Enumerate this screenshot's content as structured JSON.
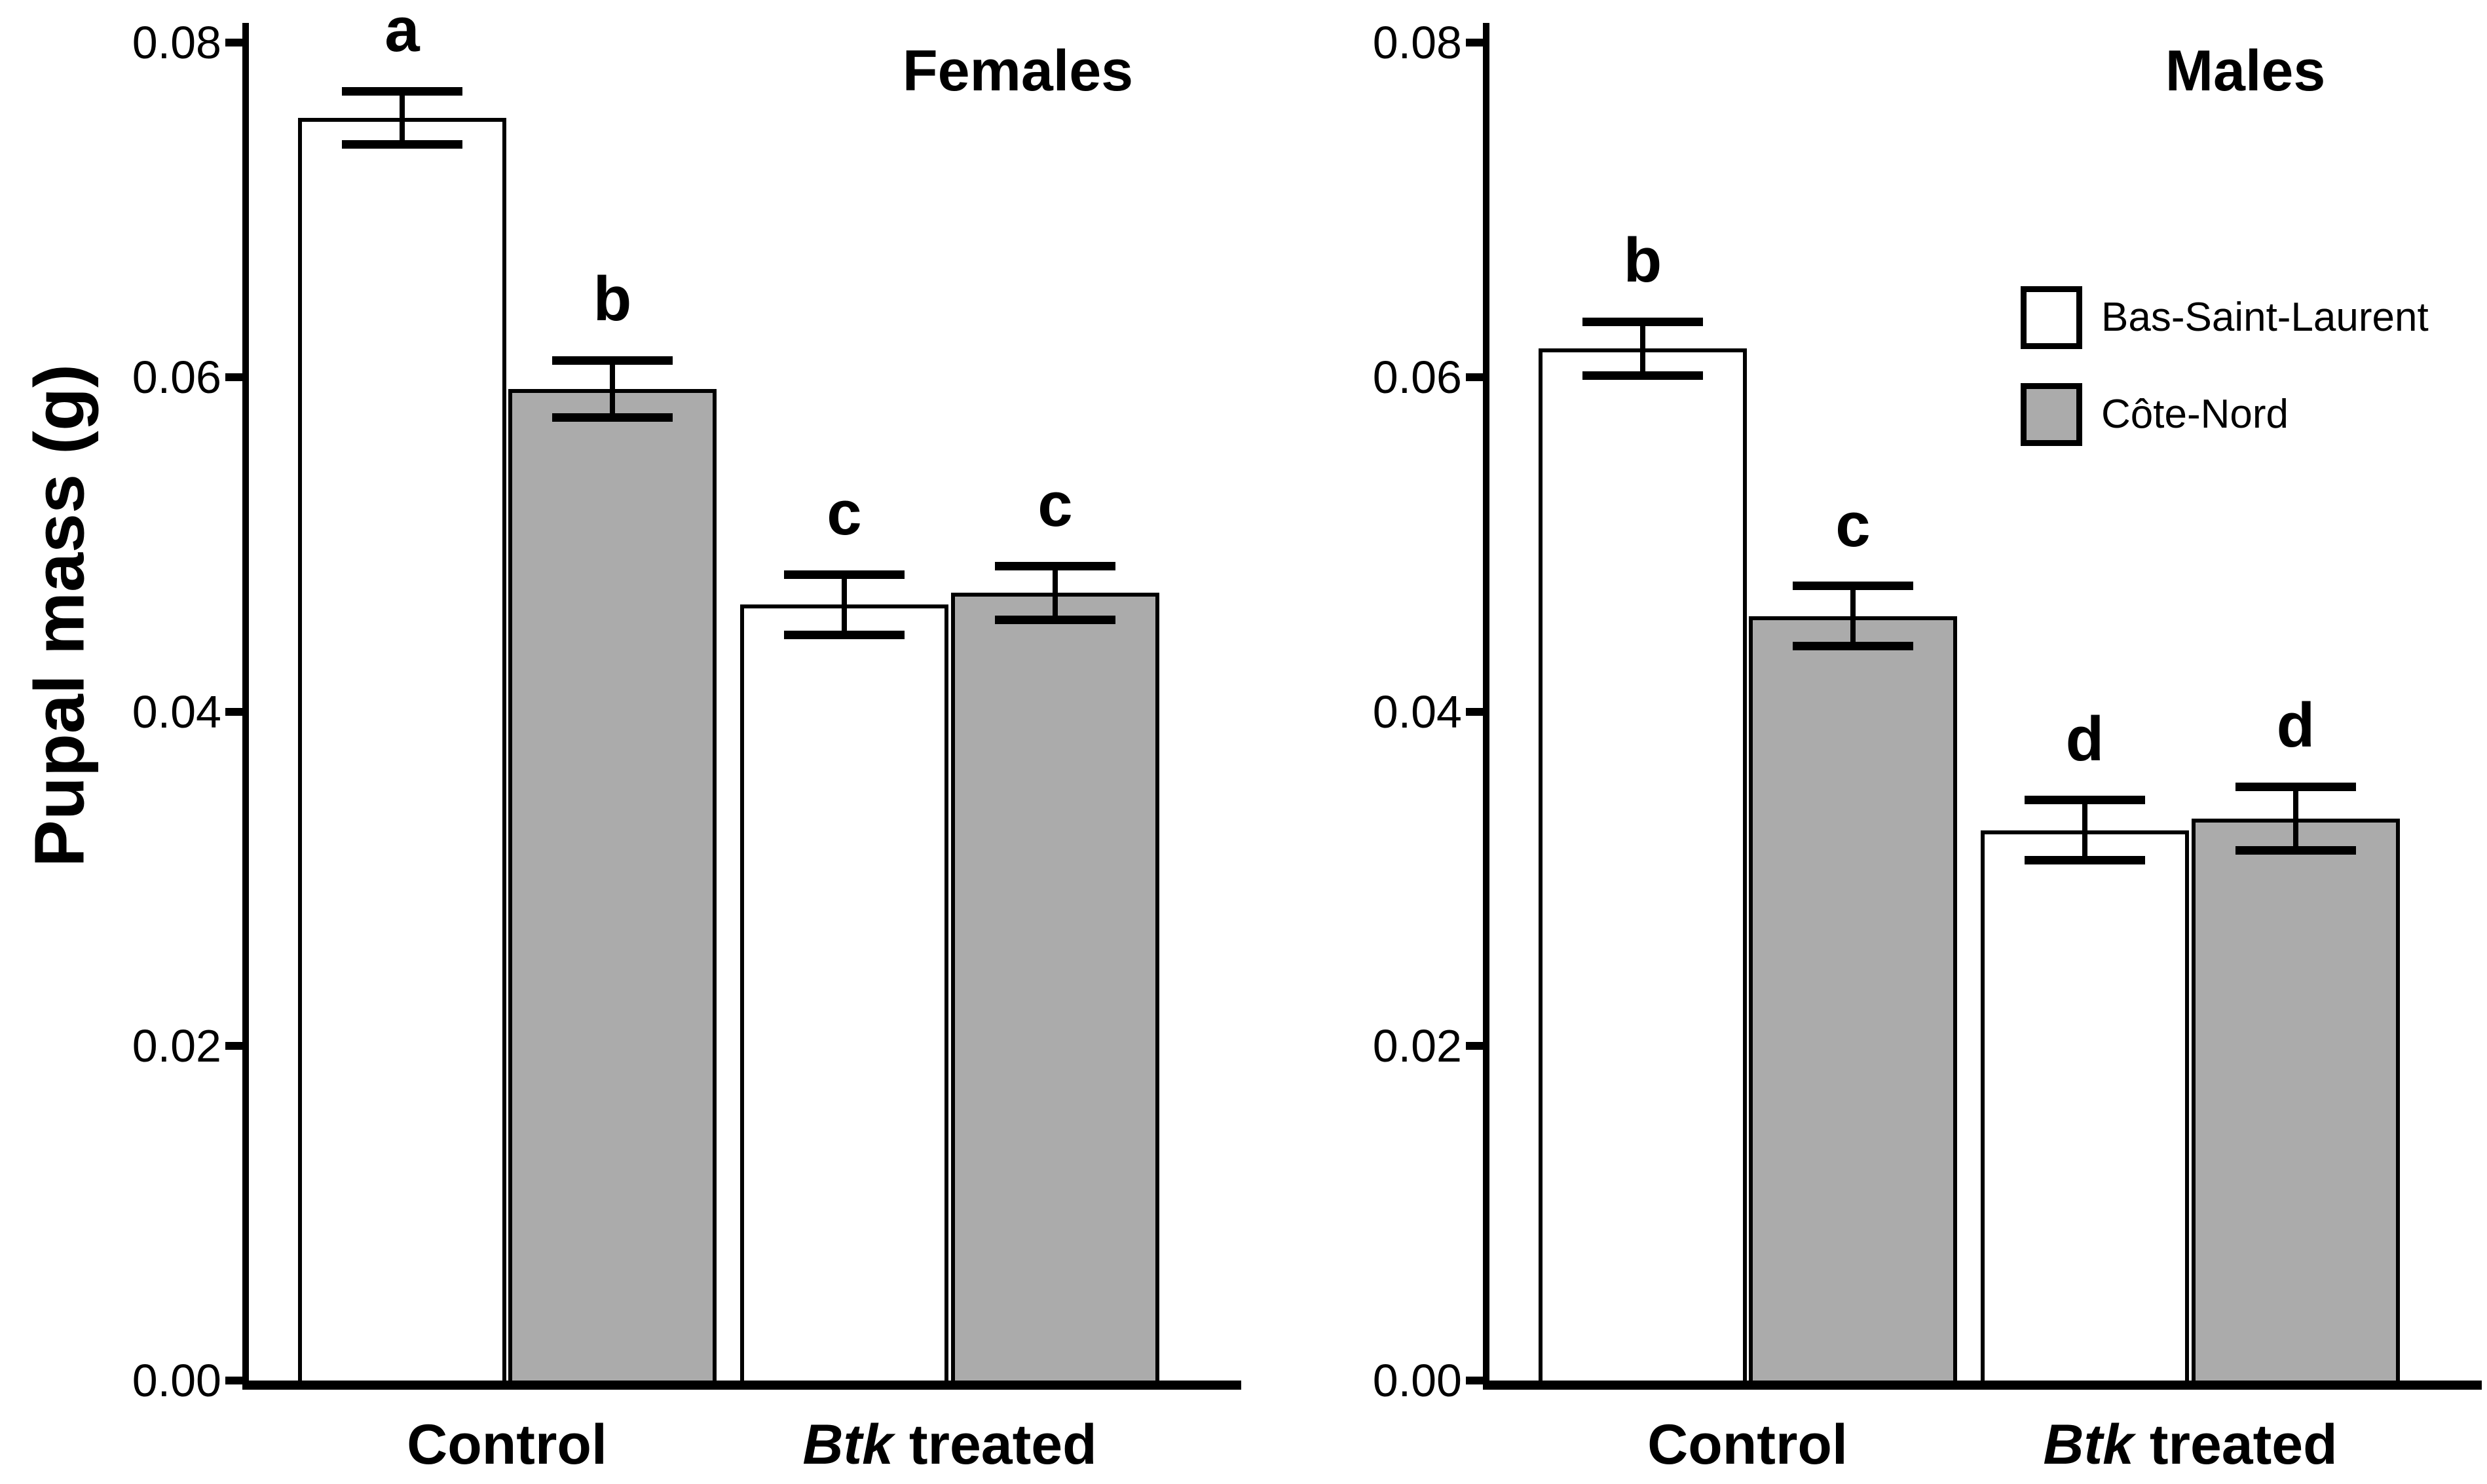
{
  "window": {
    "background": "#ffffff"
  },
  "chart_data": {
    "type": "bar",
    "title": "",
    "ylabel": "Pupal mass (g)",
    "ylim": [
      0,
      0.08
    ],
    "yticks": [
      0,
      0.02,
      0.04,
      0.06,
      0.08
    ],
    "ytick_labels": [
      "0.00",
      "0.02",
      "0.04",
      "0.06",
      "0.08"
    ],
    "categories": [
      "Control",
      "Btk treated"
    ],
    "categories_rich": [
      {
        "italic": "",
        "text": "Control"
      },
      {
        "italic": "Btk",
        "text": " treated"
      }
    ],
    "grid": "off",
    "error_bars": "symmetric, capped",
    "legend_position": "upper-right of Males panel",
    "legend": [
      {
        "label": "Bas-Saint-Laurent",
        "fill": "#ffffff"
      },
      {
        "label": "Côte-Nord",
        "fill": "#ababab"
      }
    ],
    "panels": [
      {
        "title": "Females",
        "series": [
          {
            "name": "Bas-Saint-Laurent",
            "fill": "#ffffff",
            "values": [
              0.0755,
              0.0464
            ],
            "errors": [
              0.0016,
              0.0018
            ],
            "letters": [
              "a",
              "c"
            ]
          },
          {
            "name": "Côte-Nord",
            "fill": "#ababab",
            "values": [
              0.0593,
              0.0471
            ],
            "errors": [
              0.0017,
              0.0016
            ],
            "letters": [
              "b",
              "c"
            ]
          }
        ]
      },
      {
        "title": "Males",
        "series": [
          {
            "name": "Bas-Saint-Laurent",
            "fill": "#ffffff",
            "values": [
              0.0617,
              0.0329
            ],
            "errors": [
              0.0016,
              0.0018
            ],
            "letters": [
              "b",
              "d"
            ]
          },
          {
            "name": "Côte-Nord",
            "fill": "#ababab",
            "values": [
              0.0457,
              0.0336
            ],
            "errors": [
              0.0018,
              0.0019
            ],
            "letters": [
              "c",
              "d"
            ]
          }
        ]
      }
    ],
    "colors": {
      "axis": "#000000",
      "bar_outline": "#000000",
      "text": "#000000",
      "white_fill": "#ffffff",
      "gray_fill": "#ababab"
    }
  }
}
